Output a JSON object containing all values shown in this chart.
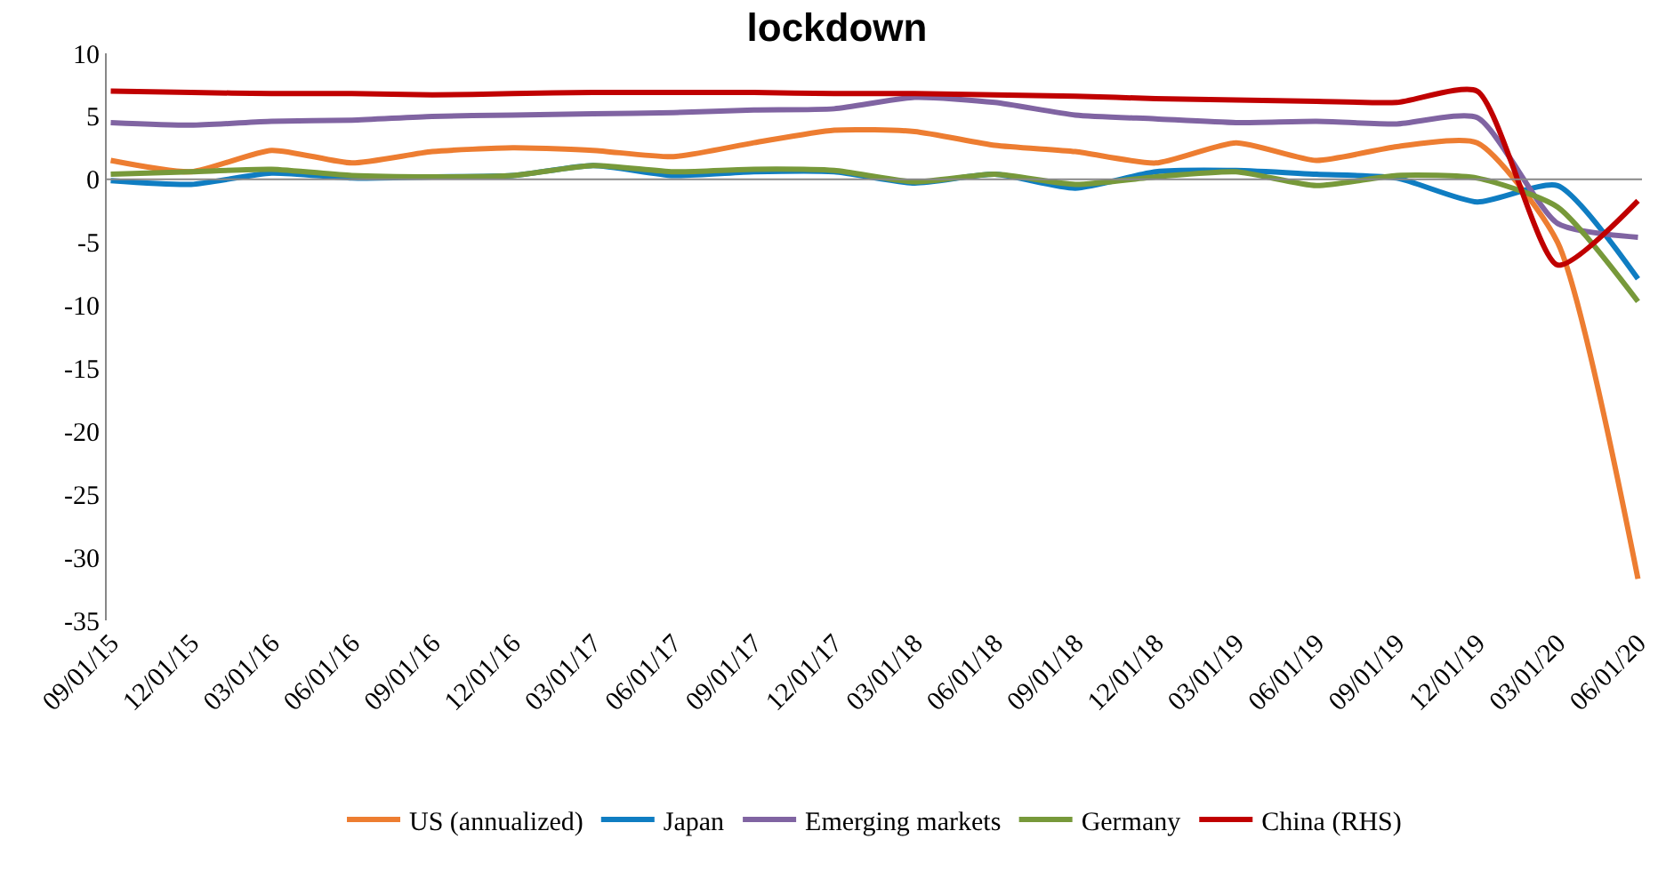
{
  "chart_data": {
    "type": "line",
    "title": "lockdown",
    "categories": [
      "09/01/15",
      "12/01/15",
      "03/01/16",
      "06/01/16",
      "09/01/16",
      "12/01/16",
      "03/01/17",
      "06/01/17",
      "09/01/17",
      "12/01/17",
      "03/01/18",
      "06/01/18",
      "09/01/18",
      "12/01/18",
      "03/01/19",
      "06/01/19",
      "09/01/19",
      "12/01/19",
      "03/01/20",
      "06/01/20"
    ],
    "series": [
      {
        "name": "US (annualized)",
        "color": "#ed7d31",
        "values": [
          1.5,
          0.6,
          2.3,
          1.3,
          2.2,
          2.5,
          2.3,
          1.8,
          2.9,
          3.9,
          3.8,
          2.7,
          2.2,
          1.3,
          2.9,
          1.5,
          2.6,
          2.9,
          -5.0,
          -31.7
        ]
      },
      {
        "name": "Japan",
        "color": "#0f7dc2",
        "values": [
          -0.1,
          -0.4,
          0.5,
          0.1,
          0.2,
          0.3,
          1.1,
          0.3,
          0.6,
          0.6,
          -0.3,
          0.4,
          -0.7,
          0.6,
          0.7,
          0.4,
          0.1,
          -1.8,
          -0.5,
          -7.9
        ]
      },
      {
        "name": "Emerging markets",
        "color": "#8064a2",
        "values": [
          4.5,
          4.3,
          4.6,
          4.7,
          5.0,
          5.1,
          5.2,
          5.3,
          5.5,
          5.6,
          6.5,
          6.1,
          5.1,
          4.8,
          4.5,
          4.6,
          4.4,
          4.9,
          -3.5,
          -4.6
        ]
      },
      {
        "name": "Germany",
        "color": "#77993a",
        "values": [
          0.4,
          0.6,
          0.8,
          0.3,
          0.2,
          0.3,
          1.1,
          0.6,
          0.8,
          0.7,
          -0.2,
          0.4,
          -0.4,
          0.2,
          0.6,
          -0.5,
          0.3,
          0.1,
          -2.2,
          -9.7
        ]
      },
      {
        "name": "China (RHS)",
        "color": "#c00000",
        "values": [
          7.0,
          6.9,
          6.8,
          6.8,
          6.7,
          6.8,
          6.9,
          6.9,
          6.9,
          6.8,
          6.8,
          6.7,
          6.6,
          6.4,
          6.3,
          6.2,
          6.1,
          7.0,
          -6.8,
          -1.7
        ]
      }
    ],
    "ylim": [
      -35,
      10
    ],
    "yticks": [
      -35,
      -30,
      -25,
      -20,
      -15,
      -10,
      -5,
      0,
      5,
      10
    ],
    "ref_lines": [
      {
        "axis": "y",
        "value": 0,
        "color": "#888888",
        "line_style": "solid"
      }
    ],
    "grid": false,
    "legend": "bottom",
    "marker": "none",
    "line_style": "solid"
  }
}
